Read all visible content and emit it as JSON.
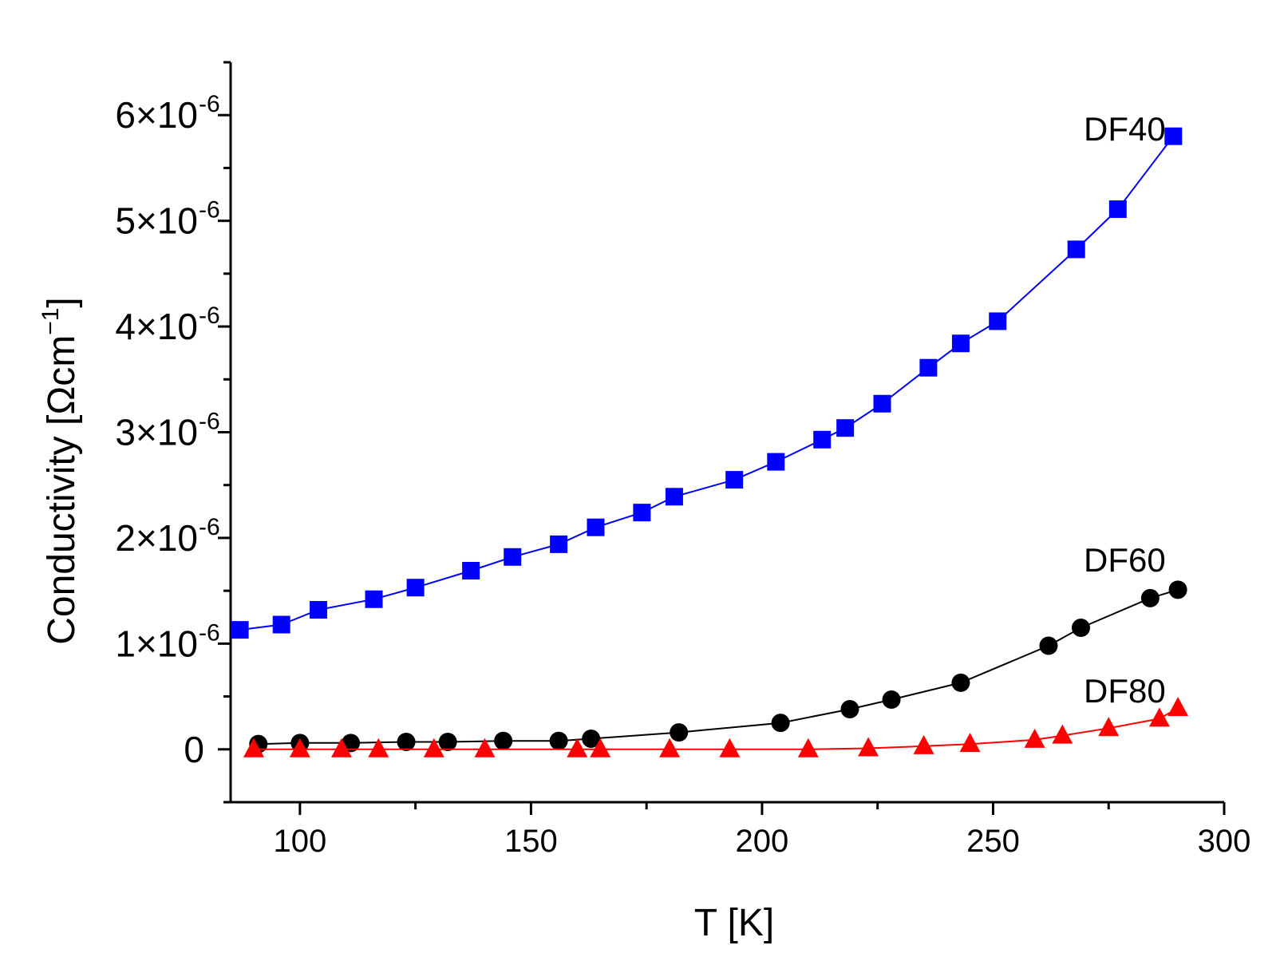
{
  "chart_data": {
    "type": "line",
    "title": "",
    "xlabel": "T [K]",
    "ylabel": {
      "text": "Conductivity [Ωcm",
      "superscript": "−1",
      "close": "]"
    },
    "xlim": [
      85,
      300
    ],
    "ylim": [
      -5e-07,
      6.5e-06
    ],
    "xticks": [
      {
        "value": 100,
        "label": "100"
      },
      {
        "value": 150,
        "label": "150"
      },
      {
        "value": 200,
        "label": "200"
      },
      {
        "value": 250,
        "label": "250"
      },
      {
        "value": 300,
        "label": "300"
      }
    ],
    "yticks": [
      {
        "value": 0,
        "main": "0",
        "exp": ""
      },
      {
        "value": 1e-06,
        "main": "1×10",
        "exp": "-6"
      },
      {
        "value": 2e-06,
        "main": "2×10",
        "exp": "-6"
      },
      {
        "value": 3e-06,
        "main": "3×10",
        "exp": "-6"
      },
      {
        "value": 4e-06,
        "main": "4×10",
        "exp": "-6"
      },
      {
        "value": 5e-06,
        "main": "5×10",
        "exp": "-6"
      },
      {
        "value": 6e-06,
        "main": "6×10",
        "exp": "-6"
      }
    ],
    "grid": false,
    "series": [
      {
        "name": "DF40",
        "color": "#0000ff",
        "marker": "square",
        "x": [
          87,
          96,
          104,
          116,
          125,
          137,
          146,
          156,
          164,
          174,
          181,
          194,
          203,
          213,
          218,
          226,
          236,
          243,
          251,
          268,
          277,
          289
        ],
        "y": [
          1.13e-06,
          1.18e-06,
          1.32e-06,
          1.42e-06,
          1.53e-06,
          1.69e-06,
          1.82e-06,
          1.94e-06,
          2.1e-06,
          2.24e-06,
          2.39e-06,
          2.55e-06,
          2.72e-06,
          2.93e-06,
          3.04e-06,
          3.27e-06,
          3.61e-06,
          3.84e-06,
          4.05e-06,
          4.73e-06,
          5.11e-06,
          5.8e-06
        ]
      },
      {
        "name": "DF60",
        "color": "#000000",
        "marker": "circle",
        "x": [
          91,
          100,
          111,
          123,
          132,
          144,
          156,
          163,
          182,
          204,
          219,
          228,
          243,
          262,
          269,
          284,
          290
        ],
        "y": [
          5e-08,
          6e-08,
          6e-08,
          7e-08,
          7e-08,
          8e-08,
          8e-08,
          1e-07,
          1.6e-07,
          2.5e-07,
          3.8e-07,
          4.7e-07,
          6.3e-07,
          9.8e-07,
          1.15e-06,
          1.43e-06,
          1.51e-06
        ]
      },
      {
        "name": "DF80",
        "color": "#ff0000",
        "marker": "triangle",
        "x": [
          90,
          100,
          109,
          117,
          129,
          140,
          160,
          165,
          180,
          193,
          210,
          223,
          235,
          245,
          259,
          265,
          275,
          286,
          290
        ],
        "y": [
          0,
          0,
          0,
          0,
          0,
          0,
          0,
          0,
          0,
          0,
          0,
          1e-08,
          3e-08,
          5e-08,
          9e-08,
          1.3e-07,
          2e-07,
          2.9e-07,
          3.9e-07
        ]
      }
    ],
    "annotations": [
      "DF40",
      "DF60",
      "DF80"
    ]
  }
}
